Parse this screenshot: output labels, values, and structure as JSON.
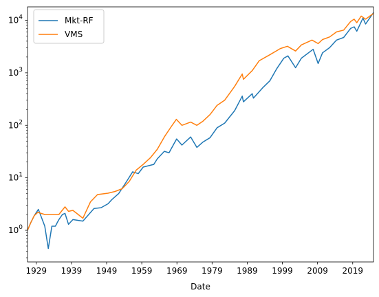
{
  "chart_data": {
    "type": "line",
    "title": "",
    "xlabel": "Date",
    "ylabel": "",
    "y_scale": "log",
    "xlim": [
      "1926-07",
      "2024-12"
    ],
    "ylim": [
      0.25,
      18000
    ],
    "grid": false,
    "legend_position": "top-left",
    "x_ticks": [
      "1929",
      "1939",
      "1949",
      "1959",
      "1969",
      "1979",
      "1989",
      "1999",
      "2009",
      "2019"
    ],
    "y_ticks": [
      {
        "value": 1,
        "base": "10",
        "exp": "0"
      },
      {
        "value": 10,
        "base": "10",
        "exp": "1"
      },
      {
        "value": 100,
        "base": "10",
        "exp": "2"
      },
      {
        "value": 1000,
        "base": "10",
        "exp": "3"
      },
      {
        "value": 10000,
        "base": "10",
        "exp": "4"
      }
    ],
    "series": [
      {
        "name": "Mkt-RF",
        "color": "#1f77b4",
        "x": [
          "1926-07",
          "1927-06",
          "1928-06",
          "1929-08",
          "1930-06",
          "1931-06",
          "1932-06",
          "1933-06",
          "1934-06",
          "1935-06",
          "1936-06",
          "1937-03",
          "1938-03",
          "1939-06",
          "1942-04",
          "1945-06",
          "1947-06",
          "1949-06",
          "1950-06",
          "1952-06",
          "1954-06",
          "1956-06",
          "1958-01",
          "1959-06",
          "1962-06",
          "1963-06",
          "1965-06",
          "1966-10",
          "1968-12",
          "1970-06",
          "1972-12",
          "1974-09",
          "1976-06",
          "1978-06",
          "1980-06",
          "1982-08",
          "1985-06",
          "1987-08",
          "1987-12",
          "1990-06",
          "1990-10",
          "1993-06",
          "1995-06",
          "1997-06",
          "1999-06",
          "2000-08",
          "2002-10",
          "2004-06",
          "2007-10",
          "2009-03",
          "2010-06",
          "2012-06",
          "2014-06",
          "2016-06",
          "2018-06",
          "2019-06",
          "2020-03",
          "2021-12",
          "2022-09",
          "2024-12"
        ],
        "values": [
          1.0,
          1.4,
          1.9,
          2.5,
          1.8,
          1.2,
          0.45,
          1.2,
          1.2,
          1.6,
          2.0,
          2.1,
          1.3,
          1.6,
          1.5,
          2.6,
          2.7,
          3.2,
          3.8,
          5.0,
          8.0,
          13,
          12,
          16,
          18,
          23,
          32,
          30,
          55,
          42,
          60,
          38,
          48,
          58,
          90,
          110,
          190,
          360,
          280,
          400,
          330,
          520,
          700,
          1200,
          1900,
          2100,
          1250,
          1900,
          2800,
          1500,
          2400,
          3000,
          4200,
          4700,
          7000,
          7500,
          6200,
          11000,
          8500,
          14000
        ]
      },
      {
        "name": "VMS",
        "color": "#ff7f0e",
        "x": [
          "1926-07",
          "1927-06",
          "1928-06",
          "1929-06",
          "1931-06",
          "1933-06",
          "1935-06",
          "1937-03",
          "1938-03",
          "1939-06",
          "1942-04",
          "1944-06",
          "1946-06",
          "1949-06",
          "1951-06",
          "1953-06",
          "1955-06",
          "1957-06",
          "1959-06",
          "1961-06",
          "1963-06",
          "1965-06",
          "1967-06",
          "1968-11",
          "1970-06",
          "1972-12",
          "1974-09",
          "1976-06",
          "1978-06",
          "1980-06",
          "1982-08",
          "1985-06",
          "1987-08",
          "1987-12",
          "1990-06",
          "1992-06",
          "1995-06",
          "1998-06",
          "2000-06",
          "2002-10",
          "2004-06",
          "2007-06",
          "2009-03",
          "2010-06",
          "2012-06",
          "2014-06",
          "2016-06",
          "2018-06",
          "2019-06",
          "2020-03",
          "2021-06",
          "2022-09",
          "2024-12"
        ],
        "values": [
          1.0,
          1.4,
          1.9,
          2.2,
          2.0,
          2.0,
          2.0,
          2.8,
          2.3,
          2.4,
          1.7,
          3.5,
          4.8,
          5.1,
          5.5,
          6.2,
          8.5,
          14,
          18,
          24,
          35,
          60,
          95,
          130,
          100,
          115,
          100,
          120,
          160,
          240,
          300,
          550,
          950,
          750,
          1100,
          1700,
          2200,
          2900,
          3200,
          2600,
          3400,
          4200,
          3600,
          4300,
          4800,
          6000,
          6500,
          9500,
          10500,
          9000,
          12000,
          10500,
          13500
        ]
      }
    ]
  }
}
